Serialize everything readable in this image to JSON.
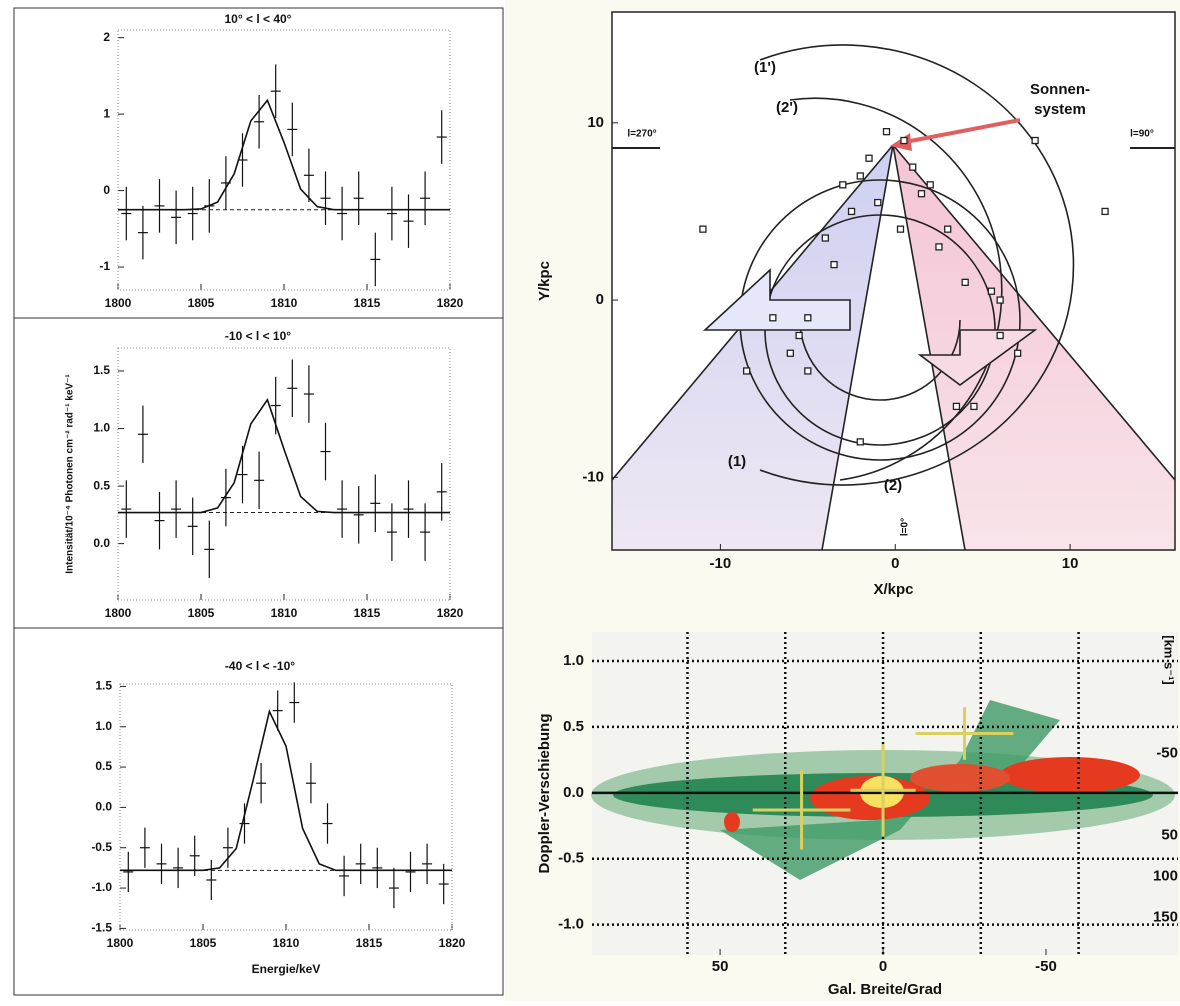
{
  "chart_data": [
    {
      "type": "errorbar",
      "title": "10° < l < 40°",
      "xlim": [
        1800,
        1820
      ],
      "xticks": [
        1800,
        1805,
        1810,
        1815,
        1820
      ],
      "ylim": [
        -1.3,
        2.1
      ],
      "yticks": [
        -1,
        0,
        1,
        2
      ],
      "points": {
        "x": [
          1800.5,
          1801.5,
          1802.5,
          1803.5,
          1804.5,
          1805.5,
          1806.5,
          1807.5,
          1808.5,
          1809.5,
          1810.5,
          1811.5,
          1812.5,
          1813.5,
          1814.5,
          1815.5,
          1816.5,
          1817.5,
          1818.5,
          1819.5
        ],
        "values": [
          -0.3,
          -0.55,
          -0.2,
          -0.35,
          -0.3,
          -0.2,
          0.1,
          0.4,
          0.9,
          1.3,
          0.8,
          0.2,
          -0.1,
          -0.3,
          -0.1,
          -0.9,
          -0.3,
          -0.4,
          -0.1,
          0.7
        ],
        "errors": [
          0.35,
          0.35,
          0.35,
          0.35,
          0.35,
          0.35,
          0.35,
          0.35,
          0.35,
          0.35,
          0.35,
          0.35,
          0.35,
          0.35,
          0.35,
          0.35,
          0.35,
          0.35,
          0.35,
          0.35
        ]
      },
      "fit": {
        "x": [
          1800,
          1801,
          1802,
          1803,
          1804,
          1805,
          1806,
          1807,
          1808,
          1809,
          1810,
          1811,
          1812,
          1813,
          1814,
          1815,
          1816,
          1817,
          1818,
          1819,
          1820
        ],
        "values": [
          -0.25,
          -0.25,
          -0.25,
          -0.25,
          -0.25,
          -0.24,
          -0.15,
          0.22,
          0.91,
          1.18,
          0.63,
          0.02,
          -0.21,
          -0.25,
          -0.25,
          -0.25,
          -0.25,
          -0.25,
          -0.25,
          -0.25,
          -0.25
        ]
      },
      "baseline": -0.25
    },
    {
      "type": "errorbar",
      "title": "-10 < l < 10°",
      "ylabel": "Intensität/10⁻⁴ Photonen cm⁻² rad⁻¹ keV⁻¹",
      "xlim": [
        1800,
        1820
      ],
      "xticks": [
        1800,
        1805,
        1810,
        1815,
        1820
      ],
      "ylim": [
        -0.49,
        1.7
      ],
      "yticks": [
        {
          "value": 0,
          "label": "0.0"
        },
        0.5,
        {
          "value": 1,
          "label": "1.0"
        },
        1.5
      ],
      "points": {
        "x": [
          1800.5,
          1801.5,
          1802.5,
          1803.5,
          1804.5,
          1805.5,
          1806.5,
          1807.5,
          1808.5,
          1809.5,
          1810.5,
          1811.5,
          1812.5,
          1813.5,
          1814.5,
          1815.5,
          1816.5,
          1817.5,
          1818.5,
          1819.5
        ],
        "values": [
          0.3,
          0.95,
          0.2,
          0.3,
          0.15,
          -0.05,
          0.4,
          0.6,
          0.55,
          1.2,
          1.35,
          1.3,
          0.8,
          0.3,
          0.25,
          0.35,
          0.1,
          0.3,
          0.1,
          0.45
        ],
        "errors": [
          0.25,
          0.25,
          0.25,
          0.25,
          0.25,
          0.25,
          0.25,
          0.25,
          0.25,
          0.25,
          0.25,
          0.25,
          0.25,
          0.25,
          0.25,
          0.25,
          0.25,
          0.25,
          0.25,
          0.25
        ]
      },
      "fit": {
        "x": [
          1800,
          1801,
          1802,
          1803,
          1804,
          1805,
          1806,
          1807,
          1808,
          1809,
          1810,
          1811,
          1812,
          1813,
          1814,
          1815,
          1816,
          1817,
          1818,
          1819,
          1820
        ],
        "values": [
          0.27,
          0.27,
          0.27,
          0.27,
          0.27,
          0.27,
          0.31,
          0.53,
          1.04,
          1.25,
          0.82,
          0.41,
          0.28,
          0.27,
          0.27,
          0.27,
          0.27,
          0.27,
          0.27,
          0.27,
          0.27
        ]
      },
      "baseline": 0.27
    },
    {
      "type": "errorbar",
      "title": "-40 < l < -10°",
      "xlabel": "Energie/keV",
      "xlim": [
        1800,
        1820
      ],
      "xticks": [
        1800,
        1805,
        1810,
        1815,
        1820
      ],
      "ylim": [
        -1.52,
        1.53
      ],
      "yticks": [
        -1.5,
        {
          "value": -1,
          "label": "-1.0"
        },
        -0.5,
        {
          "value": 0,
          "label": "0.0"
        },
        0.5,
        {
          "value": 1,
          "label": "1.0"
        },
        1.5
      ],
      "points": {
        "x": [
          1800.5,
          1801.5,
          1802.5,
          1803.5,
          1804.5,
          1805.5,
          1806.5,
          1807.5,
          1808.5,
          1809.5,
          1810.5,
          1811.5,
          1812.5,
          1813.5,
          1814.5,
          1815.5,
          1816.5,
          1817.5,
          1818.5,
          1819.5
        ],
        "values": [
          -0.8,
          -0.5,
          -0.7,
          -0.75,
          -0.6,
          -0.9,
          -0.5,
          -0.2,
          0.3,
          1.2,
          1.3,
          0.3,
          -0.2,
          -0.85,
          -0.7,
          -0.75,
          -1.0,
          -0.8,
          -0.7,
          -0.95
        ],
        "errors": [
          0.25,
          0.25,
          0.25,
          0.25,
          0.25,
          0.25,
          0.25,
          0.25,
          0.25,
          0.25,
          0.25,
          0.25,
          0.25,
          0.25,
          0.25,
          0.25,
          0.25,
          0.25,
          0.25,
          0.25
        ]
      },
      "fit": {
        "x": [
          1800,
          1801,
          1802,
          1803,
          1804,
          1805,
          1806,
          1807,
          1808,
          1809,
          1810,
          1811,
          1812,
          1813,
          1814,
          1815,
          1816,
          1817,
          1818,
          1819,
          1820
        ],
        "values": [
          -0.78,
          -0.78,
          -0.78,
          -0.78,
          -0.78,
          -0.78,
          -0.75,
          -0.51,
          0.32,
          1.19,
          0.76,
          -0.26,
          -0.7,
          -0.78,
          -0.78,
          -0.78,
          -0.78,
          -0.78,
          -0.78,
          -0.78,
          -0.78
        ]
      },
      "baseline": -0.78
    },
    {
      "type": "scatter",
      "xlabel": "X/kpc",
      "ylabel": "Y/kpc",
      "xlim": [
        -16.2,
        16
      ],
      "xticks": [
        -10,
        0,
        10
      ],
      "ylim": [
        -14.1,
        16.25
      ],
      "yticks": [
        -10,
        0,
        10
      ],
      "x": [
        -0.5,
        0.5,
        -1.5,
        1,
        -2,
        2,
        -3,
        1.5,
        -1,
        0.3,
        -2.5,
        3,
        -4,
        2.5,
        -3.5,
        4,
        -5,
        5.5,
        -6,
        6,
        -7,
        7,
        -5,
        4.5,
        -2,
        3.5,
        -11,
        12,
        -8.5,
        8,
        6,
        -5.5
      ],
      "values": [
        9.5,
        9,
        8,
        7.5,
        7,
        6.5,
        6.5,
        6,
        5.5,
        4,
        5,
        4,
        3.5,
        3,
        2,
        1,
        -1,
        0.5,
        -3,
        -2,
        -1,
        -3,
        -4,
        -6,
        -8,
        -6,
        4,
        5,
        -4,
        9,
        0,
        -2
      ],
      "annotations": [
        "(1')",
        "(2')",
        "Sonnen-",
        "system",
        "l=270°",
        "l=90°",
        "(1)",
        "(2)",
        "l=0°"
      ]
    },
    {
      "type": "heatmap",
      "xlabel": "Gal. Breite/Grad",
      "ylabel": "Doppler-Verschiebung",
      "y2label": "[km s⁻¹]",
      "xlim": [
        89.3,
        -90.5
      ],
      "xticks": [
        50,
        0,
        -50
      ],
      "xgrid": [
        60,
        30,
        0,
        -30,
        -60
      ],
      "ylim": [
        -1.23,
        1.22
      ],
      "yticks": [
        {
          "value": 1,
          "label": "1.0"
        },
        0.5,
        {
          "value": 0,
          "label": "0.0"
        },
        -0.5,
        {
          "value": -1,
          "label": "-1.0"
        }
      ],
      "y2lim": [
        -198,
        196
      ],
      "y2ticks": [
        -50,
        50,
        100,
        150
      ],
      "points": {
        "x": [
          25,
          0,
          -25
        ],
        "values": [
          -0.13,
          0.02,
          0.45
        ],
        "xerr": [
          15,
          10,
          15
        ],
        "yerr": [
          0.3,
          0.35,
          0.2
        ]
      }
    }
  ]
}
